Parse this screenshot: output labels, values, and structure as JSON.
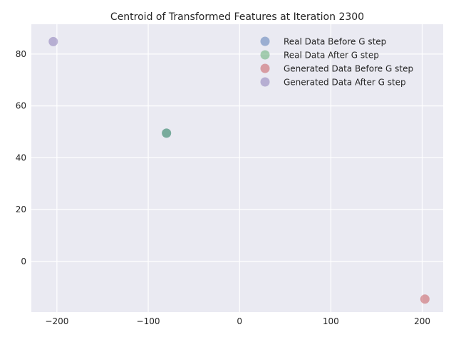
{
  "chart_data": {
    "type": "scatter",
    "title": "Centroid of Transformed Features at Iteration 2300",
    "xlabel": "",
    "ylabel": "",
    "xlim": [
      -228,
      223
    ],
    "ylim": [
      -19.5,
      91.5
    ],
    "xticks": [
      -200,
      -100,
      0,
      100,
      200
    ],
    "xtick_labels": [
      "−200",
      "−100",
      "0",
      "100",
      "200"
    ],
    "yticks": [
      0,
      20,
      40,
      60,
      80
    ],
    "ytick_labels": [
      "0",
      "20",
      "40",
      "60",
      "80"
    ],
    "grid": true,
    "legend_position": "top-right",
    "series": [
      {
        "name": "Real Data Before G step",
        "color": "#4c72b0",
        "points": [
          {
            "x": -80,
            "y": 49.5
          }
        ]
      },
      {
        "name": "Real Data After G step",
        "color": "#55a868",
        "points": [
          {
            "x": -80,
            "y": 49.5
          }
        ]
      },
      {
        "name": "Generated Data Before G step",
        "color": "#c44e52",
        "points": [
          {
            "x": 203,
            "y": -14.5
          }
        ]
      },
      {
        "name": "Generated Data After G step",
        "color": "#8172b2",
        "points": [
          {
            "x": -204,
            "y": 84.8
          }
        ]
      }
    ]
  }
}
